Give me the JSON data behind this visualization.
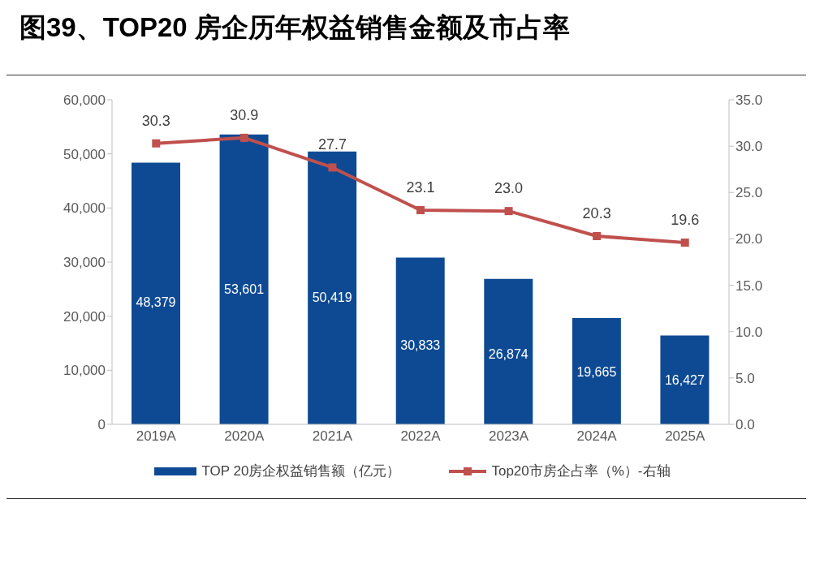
{
  "chart_data": {
    "type": "bar",
    "title": "图39、TOP20 房企历年权益销售金额及市占率",
    "categories": [
      "2019A",
      "2020A",
      "2021A",
      "2022A",
      "2023A",
      "2024A",
      "2025A"
    ],
    "series": [
      {
        "name": "TOP 20房企权益销售额（亿元）",
        "color": "#0e4a93",
        "values": [
          48379,
          53601,
          50419,
          30833,
          26874,
          19665,
          16427
        ],
        "value_labels": [
          "48,379",
          "53,601",
          "50,419",
          "30,833",
          "26,874",
          "19,665",
          "16,427"
        ]
      },
      {
        "name": "Top20市房企占率（%）-右轴",
        "type": "line",
        "axis": "y2",
        "color": "#c0504d",
        "marker": "square",
        "values": [
          30.3,
          30.9,
          27.7,
          23.1,
          23.0,
          20.3,
          19.6
        ],
        "value_labels": [
          "30.3",
          "30.9",
          "27.7",
          "23.1",
          "23.0",
          "20.3",
          "19.6"
        ]
      }
    ],
    "ylim": [
      0,
      60000
    ],
    "yticks": [
      0,
      {
        "value": 10000,
        "label": "10,000"
      },
      {
        "value": 20000,
        "label": "20,000"
      },
      {
        "value": 30000,
        "label": "30,000"
      },
      {
        "value": 40000,
        "label": "40,000"
      },
      {
        "value": 50000,
        "label": "50,000"
      },
      {
        "value": 60000,
        "label": "60,000"
      }
    ],
    "y2lim": [
      0,
      35
    ],
    "y2ticks": [
      {
        "value": 0,
        "label": "0.0"
      },
      {
        "value": 5,
        "label": "5.0"
      },
      {
        "value": 10,
        "label": "10.0"
      },
      {
        "value": 15,
        "label": "15.0"
      },
      {
        "value": 20,
        "label": "20.0"
      },
      {
        "value": 25,
        "label": "25.0"
      },
      {
        "value": 30,
        "label": "30.0"
      },
      {
        "value": 35,
        "label": "35.0"
      }
    ],
    "grid": false,
    "legend": "bottom"
  }
}
